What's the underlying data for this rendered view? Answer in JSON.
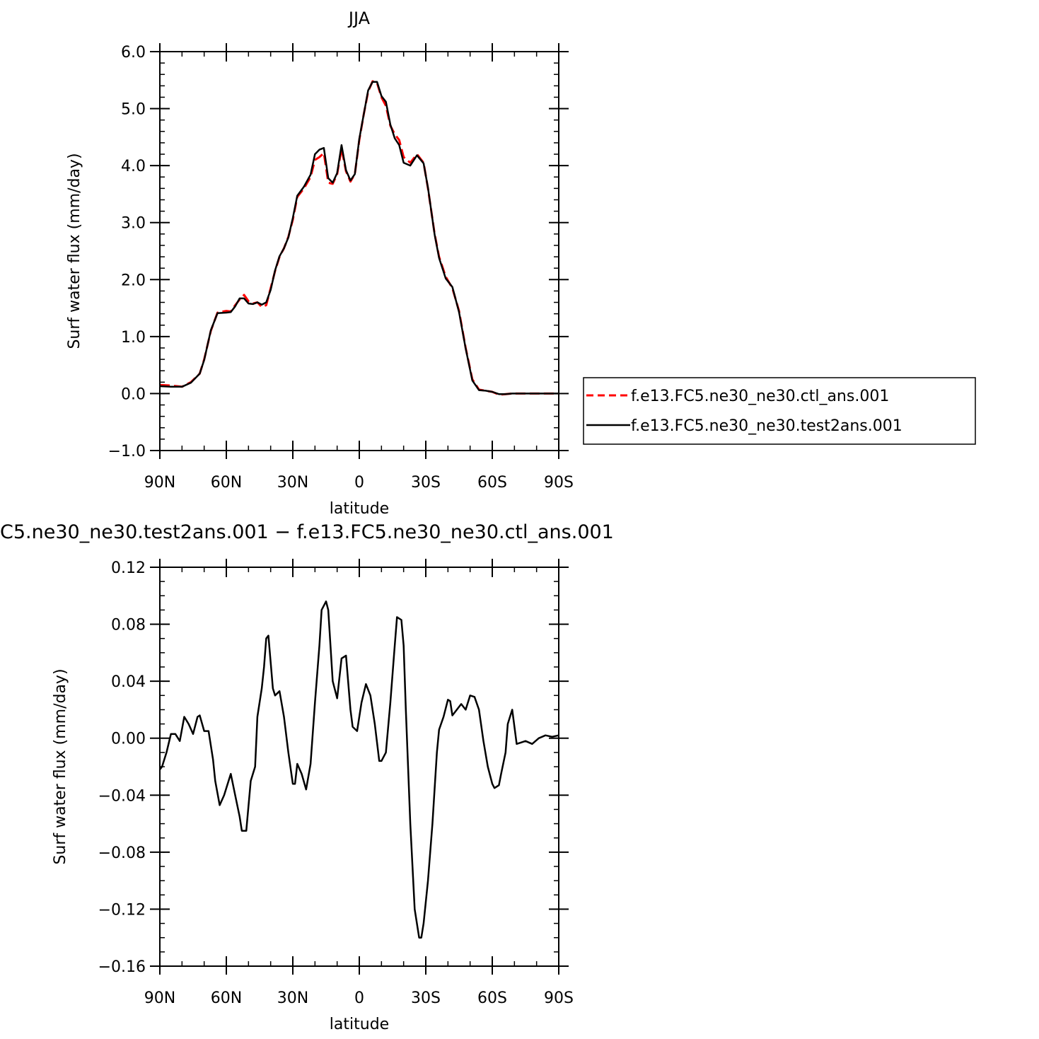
{
  "chart_data": [
    {
      "type": "line",
      "title": "JJA",
      "xlabel": "latitude",
      "ylabel": "Surf water flux (mm/day)",
      "xlim": [
        90,
        -90
      ],
      "ylim": [
        -1.0,
        6.0
      ],
      "xticks": [
        90,
        60,
        30,
        0,
        -30,
        -60,
        -90
      ],
      "xticklabels": [
        "90N",
        "60N",
        "30N",
        "0",
        "30S",
        "60S",
        "90S"
      ],
      "yticks": [
        -1.0,
        0.0,
        1.0,
        2.0,
        3.0,
        4.0,
        5.0,
        6.0
      ],
      "yticklabels": [
        "−1.0",
        "0.0",
        "1.0",
        "2.0",
        "3.0",
        "4.0",
        "5.0",
        "6.0"
      ],
      "grid": false,
      "legend_position": "right",
      "x": [
        90,
        85,
        80,
        76,
        72,
        70,
        67,
        64,
        60,
        58,
        56,
        54,
        52,
        50,
        48,
        46,
        44,
        42,
        40,
        38,
        36,
        34,
        32,
        30,
        28,
        25,
        22,
        20,
        18,
        16,
        14,
        12,
        10,
        8,
        6,
        4,
        2,
        0,
        -2,
        -4,
        -6,
        -8,
        -10,
        -12,
        -14,
        -16,
        -18,
        -20,
        -23,
        -26,
        -29,
        -31,
        -34,
        -36,
        -39,
        -42,
        -45,
        -48,
        -51,
        -54,
        -57,
        -60,
        -63,
        -66,
        -69,
        -72,
        -75,
        -78,
        -80,
        -84,
        -90
      ],
      "series": [
        {
          "name": "f.e13.FC5.ne30_ne30.ctl_ans.001",
          "color": "#ff0000",
          "dash": "dashed",
          "values": [
            0.15,
            0.14,
            0.12,
            0.2,
            0.35,
            0.6,
            1.1,
            1.42,
            1.45,
            1.44,
            1.55,
            1.65,
            1.73,
            1.62,
            1.58,
            1.6,
            1.52,
            1.55,
            1.85,
            2.15,
            2.4,
            2.55,
            2.75,
            3.05,
            3.45,
            3.6,
            3.8,
            4.1,
            4.15,
            4.22,
            3.7,
            3.68,
            3.85,
            4.3,
            3.9,
            3.72,
            3.85,
            4.45,
            4.9,
            5.3,
            5.48,
            5.45,
            5.2,
            5.05,
            4.7,
            4.55,
            4.45,
            4.15,
            4.05,
            4.2,
            4.05,
            3.6,
            2.8,
            2.4,
            2.05,
            1.85,
            1.45,
            0.8,
            0.25,
            0.07,
            0.05,
            0.03,
            -0.02,
            -0.01,
            0.0,
            0.0,
            0.0,
            0.0,
            0.0,
            0.0,
            0.0
          ]
        },
        {
          "name": "f.e13.FC5.ne30_ne30.test2ans.001",
          "color": "#000000",
          "dash": "solid",
          "values": [
            0.13,
            0.12,
            0.12,
            0.19,
            0.35,
            0.59,
            1.11,
            1.41,
            1.42,
            1.43,
            1.53,
            1.67,
            1.67,
            1.58,
            1.57,
            1.6,
            1.56,
            1.6,
            1.82,
            2.16,
            2.41,
            2.55,
            2.74,
            3.08,
            3.47,
            3.63,
            3.84,
            4.2,
            4.28,
            4.31,
            3.78,
            3.7,
            3.87,
            4.36,
            3.92,
            3.74,
            3.85,
            4.47,
            4.9,
            5.32,
            5.47,
            5.47,
            5.22,
            5.12,
            4.72,
            4.48,
            4.36,
            4.05,
            4.0,
            4.18,
            4.04,
            3.61,
            2.79,
            2.38,
            2.02,
            1.87,
            1.43,
            0.79,
            0.23,
            0.06,
            0.05,
            0.03,
            -0.01,
            -0.01,
            0.0,
            0.0,
            0.0,
            0.0,
            0.0,
            0.0,
            0.0
          ]
        }
      ]
    },
    {
      "type": "line",
      "title": "C5.ne30_ne30.test2ans.001 − f.e13.FC5.ne30_ne30.ctl_ans.001",
      "xlabel": "latitude",
      "ylabel": "Surf water flux (mm/day)",
      "xlim": [
        90,
        -90
      ],
      "ylim": [
        -0.16,
        0.12
      ],
      "xticks": [
        90,
        60,
        30,
        0,
        -30,
        -60,
        -90
      ],
      "xticklabels": [
        "90N",
        "60N",
        "30N",
        "0",
        "30S",
        "60S",
        "90S"
      ],
      "yticks": [
        -0.16,
        -0.12,
        -0.08,
        -0.04,
        0.0,
        0.04,
        0.08,
        0.12
      ],
      "yticklabels": [
        "−0.16",
        "−0.12",
        "−0.08",
        "−0.04",
        "0.00",
        "0.04",
        "0.08",
        "0.12"
      ],
      "grid": false,
      "x": [
        90,
        89,
        87,
        85,
        83,
        81,
        79,
        77,
        75,
        73,
        72,
        70,
        68,
        66,
        65,
        63,
        61,
        60,
        58,
        56,
        54,
        53,
        51,
        49,
        47,
        46,
        44,
        43,
        42,
        41,
        39,
        38,
        36,
        34,
        32,
        30,
        29,
        28,
        26,
        24,
        22,
        20,
        18,
        17,
        15,
        14,
        12,
        10,
        8,
        6,
        4,
        3,
        1,
        0,
        -1,
        -3,
        -5,
        -7,
        -9,
        -10,
        -12,
        -14,
        -16,
        -17,
        -19,
        -20,
        -21,
        -23,
        -25,
        -27,
        -28,
        -29,
        -31,
        -33,
        -35,
        -36,
        -38,
        -40,
        -41,
        -42,
        -44,
        -46,
        -48,
        -50,
        -52,
        -54,
        -56,
        -58,
        -60,
        -61,
        -63,
        -64,
        -66,
        -67,
        -69,
        -71,
        -73,
        -75,
        -78,
        -81,
        -84,
        -87,
        -90
      ],
      "series": [
        {
          "name": "",
          "color": "#000000",
          "values": [
            -0.022,
            -0.02,
            -0.01,
            0.003,
            0.003,
            -0.002,
            0.015,
            0.01,
            0.003,
            0.015,
            0.016,
            0.005,
            0.005,
            -0.015,
            -0.03,
            -0.047,
            -0.04,
            -0.035,
            -0.025,
            -0.04,
            -0.055,
            -0.065,
            -0.065,
            -0.03,
            -0.02,
            0.015,
            0.035,
            0.05,
            0.07,
            0.072,
            0.035,
            0.03,
            0.033,
            0.015,
            -0.01,
            -0.032,
            -0.032,
            -0.018,
            -0.025,
            -0.036,
            -0.018,
            0.025,
            0.065,
            0.09,
            0.096,
            0.09,
            0.04,
            0.028,
            0.056,
            0.058,
            0.02,
            0.008,
            0.005,
            0.015,
            0.025,
            0.038,
            0.03,
            0.01,
            -0.016,
            -0.016,
            -0.01,
            0.025,
            0.065,
            0.085,
            0.083,
            0.065,
            0.02,
            -0.06,
            -0.12,
            -0.14,
            -0.14,
            -0.13,
            -0.1,
            -0.06,
            -0.01,
            0.006,
            0.015,
            0.027,
            0.026,
            0.016,
            0.02,
            0.024,
            0.02,
            0.03,
            0.029,
            0.02,
            -0.002,
            -0.02,
            -0.032,
            -0.035,
            -0.033,
            -0.025,
            -0.01,
            0.01,
            0.02,
            -0.004,
            -0.003,
            -0.002,
            -0.004,
            0.0,
            0.002,
            0.001,
            0.002
          ]
        }
      ]
    }
  ]
}
